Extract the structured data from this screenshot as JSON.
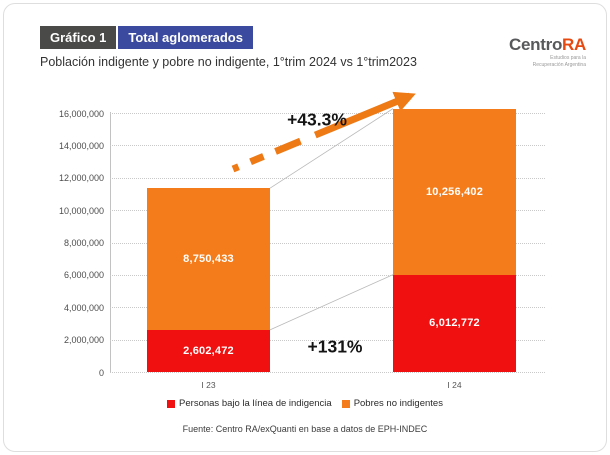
{
  "header": {
    "chart_label": "Gráfico 1",
    "badge_title": "Total aglomerados",
    "subtitle": "Población indigente y pobre no indigente, 1°trim 2024 vs 1°trim2023"
  },
  "logo": {
    "name_primary": "Centro",
    "name_accent": "RA",
    "tagline_line1": "Estudios para la",
    "tagline_line2": "Recuperación Argentina"
  },
  "chart_data": {
    "type": "bar",
    "stacked": true,
    "title": "Población indigente y pobre no indigente, 1°trim 2024 vs 1°trim2023",
    "categories": [
      "I 23",
      "I 24"
    ],
    "series": [
      {
        "name": "Personas bajo la línea de indigencia",
        "color": "#f01010",
        "values": [
          2602472,
          6012772
        ],
        "value_labels": [
          "2,602,472",
          "6,012,772"
        ]
      },
      {
        "name": "Pobres no indigentes",
        "color": "#f57c1a",
        "values": [
          8750433,
          10256402
        ],
        "value_labels": [
          "8,750,433",
          "10,256,402"
        ]
      }
    ],
    "y_axis": {
      "min": 0,
      "max": 16000000,
      "step": 2000000,
      "tick_labels": [
        "0",
        "2,000,000",
        "4,000,000",
        "6,000,000",
        "8,000,000",
        "10,000,000",
        "12,000,000",
        "14,000,000",
        "16,000,000"
      ]
    },
    "annotations": [
      {
        "text": "+43.3%",
        "meaning": "total growth"
      },
      {
        "text": "+131%",
        "meaning": "indigencia growth"
      }
    ],
    "grid": "dotted horizontal",
    "legend_position": "bottom",
    "arrow_color": "#ee7a15",
    "connector_color": "#b9b9b9"
  },
  "footer": {
    "source": "Fuente: Centro RA/exQuanti en base a datos de EPH-INDEC"
  }
}
